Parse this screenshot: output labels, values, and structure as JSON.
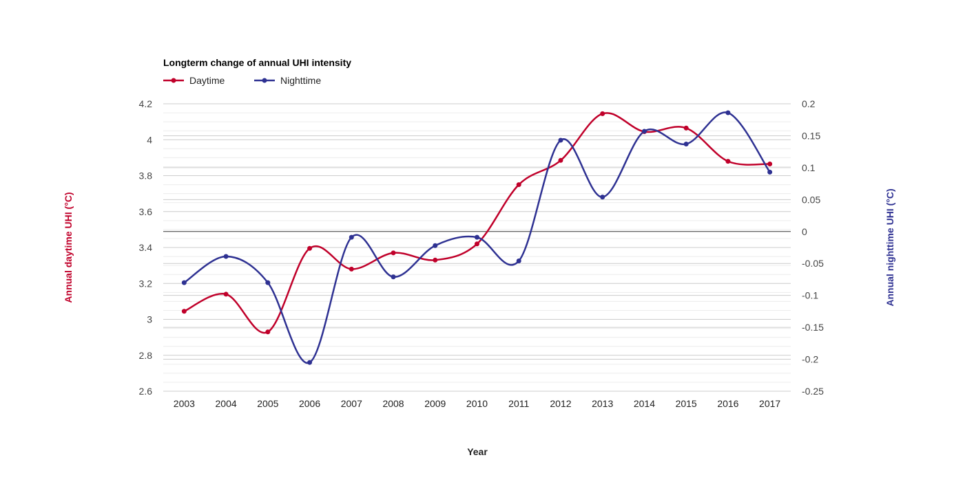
{
  "chart_data": {
    "type": "line",
    "title": "Longterm change of annual UHI intensity",
    "xlabel": "Year",
    "categories": [
      "2003",
      "2004",
      "2005",
      "2006",
      "2007",
      "2008",
      "2009",
      "2010",
      "2011",
      "2012",
      "2013",
      "2014",
      "2015",
      "2016",
      "2017"
    ],
    "series": [
      {
        "name": "Daytime",
        "axis": "left",
        "color": "#c0002a",
        "values": [
          3.045,
          3.14,
          2.93,
          3.395,
          3.28,
          3.37,
          3.33,
          3.42,
          3.75,
          3.885,
          4.145,
          4.045,
          4.065,
          3.88,
          3.865
        ]
      },
      {
        "name": "Nighttime",
        "axis": "right",
        "color": "#2e3192",
        "values": [
          -0.08,
          -0.039,
          -0.08,
          -0.205,
          -0.009,
          -0.071,
          -0.022,
          -0.009,
          -0.046,
          0.143,
          0.054,
          0.157,
          0.137,
          0.186,
          0.093
        ]
      }
    ],
    "y_left": {
      "label": "Annual daytime UHI (°C)",
      "range": [
        2.6,
        4.2
      ],
      "ticks": [
        2.6,
        2.8,
        3,
        3.2,
        3.4,
        3.6,
        3.8,
        4,
        4.2
      ],
      "tick_labels": [
        "2.6",
        "2.8",
        "3",
        "3.2",
        "3.4",
        "3.6",
        "3.8",
        "4",
        "4.2"
      ],
      "color": "#c0002a"
    },
    "y_right": {
      "label": "Annual nighttime UHI (°C)",
      "range": [
        -0.25,
        0.2
      ],
      "ticks": [
        -0.25,
        -0.2,
        -0.15,
        -0.1,
        -0.05,
        0,
        0.05,
        0.1,
        0.15,
        0.2
      ],
      "tick_labels": [
        "-0.25",
        "-0.2",
        "-0.15",
        "-0.1",
        "-0.05",
        "0",
        "0.05",
        "0.1",
        "0.15",
        "0.2"
      ],
      "color": "#2e3192"
    },
    "grid": true,
    "legend": "top-left"
  }
}
